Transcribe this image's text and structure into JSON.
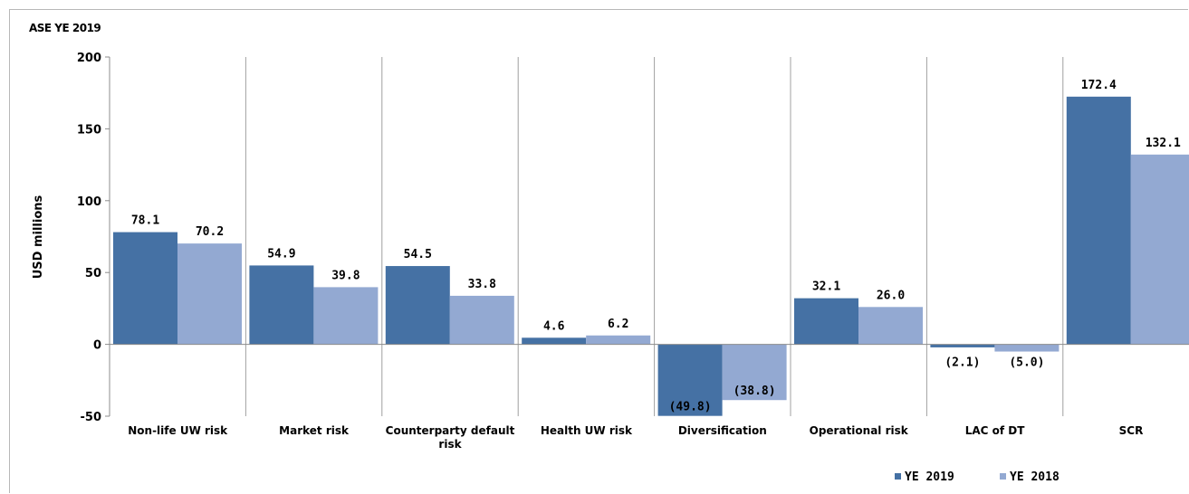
{
  "chart_data": {
    "type": "bar",
    "title": "ASE YE 2019",
    "ylabel": "USD millions",
    "xlabel": "",
    "ylim": [
      -50,
      200
    ],
    "yticks": [
      -50,
      0,
      50,
      100,
      150,
      200
    ],
    "categories": [
      [
        "Non-life UW risk"
      ],
      [
        "Market risk"
      ],
      [
        "Counterparty default",
        "risk"
      ],
      [
        "Health UW risk"
      ],
      [
        "Diversification"
      ],
      [
        "Operational risk"
      ],
      [
        "LAC of DT"
      ],
      [
        "SCR"
      ]
    ],
    "series": [
      {
        "name": "YE 2019",
        "color": "#4571a4",
        "values": [
          78.1,
          54.9,
          54.5,
          4.6,
          -49.8,
          32.1,
          -2.1,
          172.4
        ],
        "labels": [
          "78.1",
          "54.9",
          "54.5",
          "4.6",
          "(49.8)",
          "32.1",
          "(2.1)",
          "172.4"
        ]
      },
      {
        "name": "YE 2018",
        "color": "#93a9d2",
        "values": [
          70.2,
          39.8,
          33.8,
          6.2,
          -38.8,
          26.0,
          -5.0,
          132.1
        ],
        "labels": [
          "70.2",
          "39.8",
          "33.8",
          "6.2",
          "(38.8)",
          "26.0",
          "(5.0)",
          "132.1"
        ]
      }
    ],
    "grid": "vertical-category-separators",
    "legend": "bottom-right"
  }
}
